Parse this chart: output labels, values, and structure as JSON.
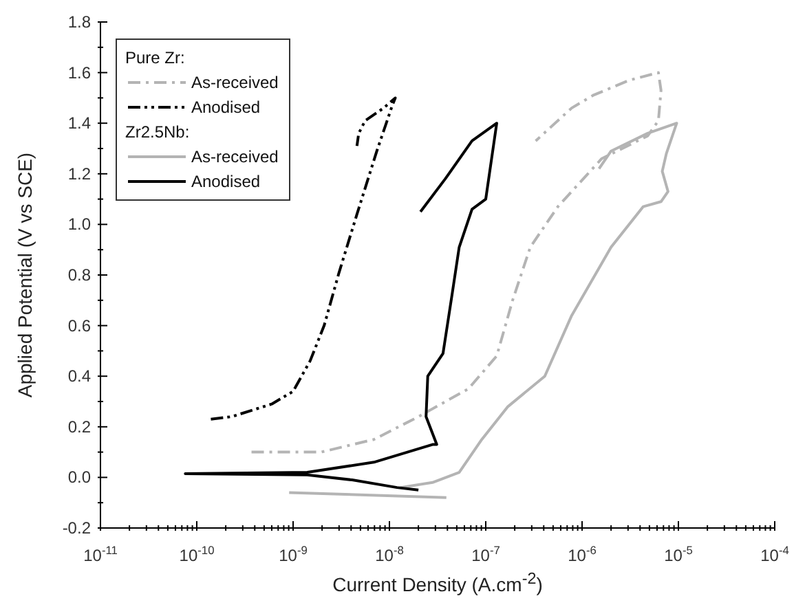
{
  "chart_data": {
    "type": "line",
    "xlabel": "Current Density (A.cm$^{-2}$)",
    "ylabel": "Applied Potential (V vs SCE)",
    "log": "x",
    "legend": "top left",
    "annotations": [
      "Pure Zr:",
      "Zr2.5Nb:"
    ],
    "xlim": [
      1e-11,
      0.0001
    ],
    "ylim": [
      -0.2,
      1.8
    ],
    "xticks": [
      {
        "value": 1e-11,
        "label": "10$^{-11}$"
      },
      {
        "value": 1e-10,
        "label": "10$^{-10}$"
      },
      {
        "value": 1e-09,
        "label": "10$^{-9}$"
      },
      {
        "value": 1e-08,
        "label": "10$^{-8}$"
      },
      {
        "value": 1e-07,
        "label": "10$^{-7}$"
      },
      {
        "value": 1e-06,
        "label": "10$^{-6}$"
      },
      {
        "value": 1e-05,
        "label": "10$^{-5}$"
      },
      {
        "value": 0.0001,
        "label": "10$^{-4}$"
      },
      {
        "value": 2e-11,
        "label": null
      },
      {
        "value": 3e-11,
        "label": null
      },
      {
        "value": 4e-11,
        "label": null
      },
      {
        "value": 5e-11,
        "label": null
      },
      {
        "value": 6e-11,
        "label": null
      },
      {
        "value": 7e-11,
        "label": null
      },
      {
        "value": 8e-11,
        "label": null
      },
      {
        "value": 9e-11,
        "label": null
      },
      {
        "value": 2e-10,
        "label": null
      },
      {
        "value": 3e-10,
        "label": null
      },
      {
        "value": 4e-10,
        "label": null
      },
      {
        "value": 5e-10,
        "label": null
      },
      {
        "value": 6e-10,
        "label": null
      },
      {
        "value": 7e-10,
        "label": null
      },
      {
        "value": 8e-10,
        "label": null
      },
      {
        "value": 9e-10,
        "label": null
      },
      {
        "value": 2e-09,
        "label": null
      },
      {
        "value": 3e-09,
        "label": null
      },
      {
        "value": 4e-09,
        "label": null
      },
      {
        "value": 5e-09,
        "label": null
      },
      {
        "value": 6e-09,
        "label": null
      },
      {
        "value": 7e-09,
        "label": null
      },
      {
        "value": 8e-09,
        "label": null
      },
      {
        "value": 9e-09,
        "label": null
      },
      {
        "value": 2e-08,
        "label": null
      },
      {
        "value": 3e-08,
        "label": null
      },
      {
        "value": 4e-08,
        "label": null
      },
      {
        "value": 5e-08,
        "label": null
      },
      {
        "value": 6e-08,
        "label": null
      },
      {
        "value": 7e-08,
        "label": null
      },
      {
        "value": 8e-08,
        "label": null
      },
      {
        "value": 9e-08,
        "label": null
      },
      {
        "value": 2e-07,
        "label": null
      },
      {
        "value": 3e-07,
        "label": null
      },
      {
        "value": 4e-07,
        "label": null
      },
      {
        "value": 5e-07,
        "label": null
      },
      {
        "value": 6e-07,
        "label": null
      },
      {
        "value": 7e-07,
        "label": null
      },
      {
        "value": 8e-07,
        "label": null
      },
      {
        "value": 9e-07,
        "label": null
      },
      {
        "value": 2e-06,
        "label": null
      },
      {
        "value": 3e-06,
        "label": null
      },
      {
        "value": 4e-06,
        "label": null
      },
      {
        "value": 5e-06,
        "label": null
      },
      {
        "value": 6e-06,
        "label": null
      },
      {
        "value": 7e-06,
        "label": null
      },
      {
        "value": 8e-06,
        "label": null
      },
      {
        "value": 9e-06,
        "label": null
      },
      {
        "value": 2e-05,
        "label": null
      },
      {
        "value": 3e-05,
        "label": null
      },
      {
        "value": 4e-05,
        "label": null
      },
      {
        "value": 5e-05,
        "label": null
      },
      {
        "value": 6e-05,
        "label": null
      },
      {
        "value": 7e-05,
        "label": null
      },
      {
        "value": 8e-05,
        "label": null
      },
      {
        "value": 9e-05,
        "label": null
      }
    ],
    "yticks": [
      {
        "value": -0.2,
        "label": "-0.2"
      },
      {
        "value": 0,
        "label": "0.0"
      },
      {
        "value": 0.2,
        "label": "0.2"
      },
      {
        "value": 0.4,
        "label": "0.4"
      },
      {
        "value": 0.6,
        "label": "0.6"
      },
      {
        "value": 0.8,
        "label": "0.8"
      },
      {
        "value": 1.0,
        "label": "1.0"
      },
      {
        "value": 1.2,
        "label": "1.2"
      },
      {
        "value": 1.4,
        "label": "1.4"
      },
      {
        "value": 1.6,
        "label": "1.6"
      },
      {
        "value": 1.8,
        "label": "1.8"
      },
      {
        "value": -0.1,
        "label": null
      },
      {
        "value": 0.1,
        "label": null
      },
      {
        "value": 0.3,
        "label": null
      },
      {
        "value": 0.5,
        "label": null
      },
      {
        "value": 0.7,
        "label": null
      },
      {
        "value": 0.9,
        "label": null
      },
      {
        "value": 1.1,
        "label": null
      },
      {
        "value": 1.3,
        "label": null
      },
      {
        "value": 1.5,
        "label": null
      },
      {
        "value": 1.7,
        "label": null
      }
    ],
    "series": [
      {
        "name": "As-received",
        "color": "#b4b4b4",
        "line_style": "dashdot",
        "x": [
          3.7e-10,
          1.95e-09,
          6.9e-09,
          2e-08,
          6.6e-08,
          1.3e-07,
          1.9e-07,
          2.9e-07,
          5.6e-07,
          1.6e-06,
          4.8e-06,
          6.2e-06,
          6.6e-06,
          6.2e-06,
          3.1e-06,
          1.3e-06,
          7.8e-07,
          3.3e-07
        ],
        "values": [
          0.1,
          0.1,
          0.15,
          0.24,
          0.35,
          0.48,
          0.7,
          0.91,
          1.07,
          1.26,
          1.35,
          1.41,
          1.53,
          1.6,
          1.57,
          1.51,
          1.46,
          1.33
        ]
      },
      {
        "name": "Anodised",
        "color": "#000000",
        "line_style": "dashdotdot",
        "x": [
          1.4e-10,
          2.3e-10,
          6e-10,
          1e-09,
          1.5e-09,
          2.1e-09,
          3e-09,
          4.6e-09,
          7.4e-09,
          1.07e-08,
          1.15e-08,
          8.7e-09,
          5.6e-09,
          4.8e-09,
          4.6e-09
        ],
        "values": [
          0.23,
          0.24,
          0.29,
          0.34,
          0.46,
          0.6,
          0.81,
          1.04,
          1.29,
          1.47,
          1.5,
          1.46,
          1.41,
          1.36,
          1.31
        ]
      },
      {
        "name": "As-received",
        "color": "#b4b4b4",
        "line_style": "solid",
        "x": [
          9.1e-10,
          3.9e-08,
          null,
          1.3e-08,
          2.8e-08,
          5.3e-08,
          9.1e-08,
          1.7e-07,
          4.1e-07,
          7.8e-07,
          2e-06,
          4.3e-06,
          6.6e-06,
          7.8e-06,
          6.8e-06,
          7.5e-06,
          9.6e-06,
          4.8e-06,
          2e-06,
          1.5e-06
        ],
        "values": [
          -0.06,
          -0.08,
          null,
          -0.04,
          -0.02,
          0.02,
          0.15,
          0.28,
          0.4,
          0.64,
          0.91,
          1.07,
          1.09,
          1.13,
          1.21,
          1.28,
          1.4,
          1.36,
          1.29,
          1.22
        ]
      },
      {
        "name": "Anodised",
        "color": "#000000",
        "line_style": "solid",
        "x": [
          2e-08,
          1.2e-08,
          4.1e-09,
          1.4e-09,
          7.6e-11,
          1.4e-09,
          6.9e-09,
          2.8e-08,
          3.1e-08,
          2.4e-08,
          2.5e-08,
          3.6e-08,
          4.5e-08,
          5.3e-08,
          7.2e-08,
          1e-07,
          1.3e-07,
          7.2e-08,
          3.8e-08,
          2.1e-08
        ],
        "values": [
          -0.05,
          -0.04,
          -0.01,
          0.01,
          0.015,
          0.02,
          0.06,
          0.13,
          0.13,
          0.24,
          0.4,
          0.49,
          0.73,
          0.91,
          1.06,
          1.1,
          1.4,
          1.33,
          1.18,
          1.05
        ]
      }
    ]
  }
}
